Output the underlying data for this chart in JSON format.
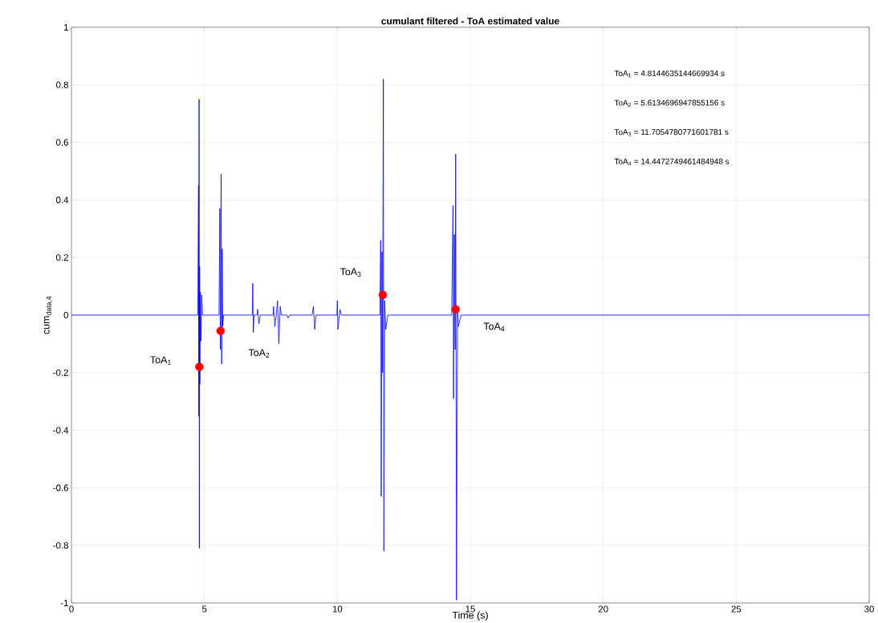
{
  "chart_data": {
    "type": "line",
    "title": "cumulant filtered - ToA estimated value",
    "xlabel": "Time (s)",
    "ylabel": "cum$_{data,4}$",
    "xlim": [
      0,
      30
    ],
    "ylim": [
      -1,
      1
    ],
    "xticks": [
      0,
      5,
      10,
      15,
      20,
      25,
      30
    ],
    "yticks": [
      -1,
      -0.8,
      -0.6,
      -0.4,
      -0.2,
      0,
      0.2,
      0.4,
      0.6,
      0.8,
      1
    ],
    "grid": true,
    "series": [
      {
        "color": "#0000ff",
        "marker": "none",
        "x": [
          0,
          4.75,
          4.78,
          4.79,
          4.8,
          4.81,
          4.82,
          4.83,
          4.85,
          4.87,
          4.9,
          4.93,
          5.55,
          5.58,
          5.6,
          5.63,
          5.65,
          5.67,
          5.69,
          5.72,
          6.8,
          6.82,
          6.84,
          6.87,
          6.98,
          7.0,
          7.05,
          7.1,
          7.58,
          7.6,
          7.65,
          7.7,
          7.75,
          7.8,
          7.85,
          7.9,
          8.1,
          8.15,
          8.2,
          9.05,
          9.1,
          9.15,
          9.2,
          9.98,
          10.0,
          10.02,
          10.1,
          10.15,
          11.6,
          11.63,
          11.65,
          11.68,
          11.7,
          11.73,
          11.75,
          11.78,
          11.82,
          11.9,
          14.3,
          14.35,
          14.37,
          14.4,
          14.43,
          14.45,
          14.48,
          14.52,
          14.55,
          14.65,
          30
        ],
        "values": [
          0,
          0,
          0.45,
          -0.35,
          0.75,
          -0.81,
          0.17,
          -0.24,
          0.08,
          -0.09,
          0.07,
          0,
          0,
          0.37,
          -0.12,
          0.49,
          -0.17,
          0.23,
          -0.04,
          0,
          0,
          0.11,
          -0.06,
          0,
          0,
          0.02,
          -0.03,
          0,
          0,
          0.03,
          -0.04,
          0,
          0.05,
          -0.1,
          0.03,
          0,
          0,
          -0.01,
          0,
          0,
          0.03,
          -0.05,
          0,
          0,
          0.05,
          -0.05,
          0.02,
          0,
          0,
          0.26,
          -0.63,
          0.22,
          -0.2,
          0.82,
          -0.82,
          0.05,
          -0.05,
          0,
          0,
          0.38,
          -0.29,
          0.28,
          -0.12,
          0.56,
          -0.99,
          0.03,
          -0.04,
          0,
          0
        ]
      },
      {
        "type": "scatter",
        "color": "#ff0000",
        "marker": "circle",
        "x": [
          4.81,
          5.61,
          11.71,
          14.45
        ],
        "values": [
          -0.18,
          -0.055,
          0.07,
          0.02
        ]
      }
    ],
    "annotations": [
      "ToA$_{1}$",
      "ToA$_{2}$",
      "ToA$_{3}$",
      "ToA$_{4}$",
      "ToA$_{1}$ = 4.8144635144669934 s",
      "ToA$_{2}$ = 5.6134696947855156 s",
      "ToA$_{3}$ = 11.7054780771601781 s",
      "ToA$_{4}$ = 14.4472749461484948 s"
    ]
  }
}
